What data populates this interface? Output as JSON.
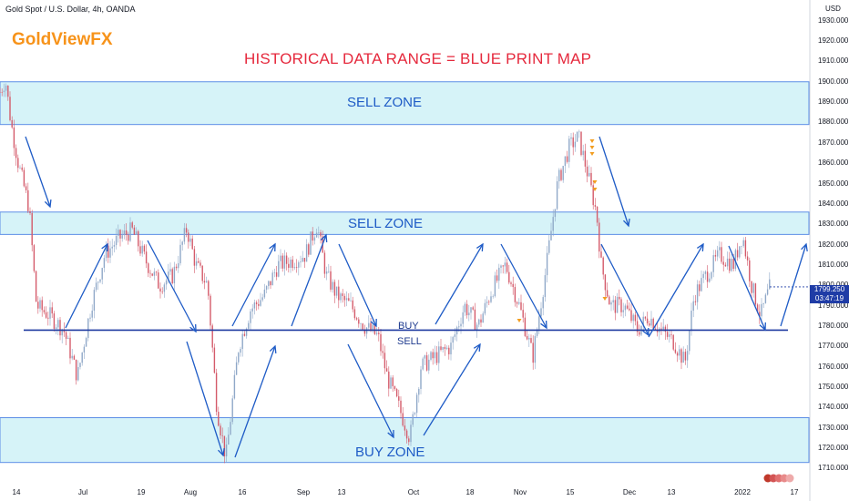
{
  "header": {
    "symbol": "Gold Spot / U.S. Dollar, 4h, OANDA",
    "brand": "GoldViewFX",
    "headline": "HISTORICAL DATA RANGE = BLUE PRINT MAP",
    "currency": "USD"
  },
  "price_tag": {
    "price": "1799.250",
    "countdown": "03:47:19",
    "color": "#1f3ca6"
  },
  "colors": {
    "zone_fill": "#d6f3f8",
    "zone_border": "#5c8ee6",
    "line": "#1e3aa0",
    "arrow": "#1e5bc6",
    "candle_up": "#8fa8c8",
    "candle_down": "#d45a6a",
    "headline": "#e5293d",
    "brand": "#f7931a"
  },
  "chart_data": {
    "type": "candlestick",
    "title": "HISTORICAL DATA RANGE = BLUE PRINT MAP",
    "yaxis": {
      "range": [
        1706,
        1935
      ],
      "unit": "USD",
      "ticks": [
        "1930.000",
        "1920.000",
        "1910.000",
        "1900.000",
        "1890.000",
        "1880.000",
        "1870.000",
        "1860.000",
        "1850.000",
        "1840.000",
        "1830.000",
        "1820.000",
        "1810.000",
        "1800.000",
        "1790.000",
        "1780.000",
        "1770.000",
        "1760.000",
        "1750.000",
        "1740.000",
        "1730.000",
        "1720.000",
        "1710.000"
      ]
    },
    "xaxis": {
      "ticks": [
        "14",
        "Jul",
        "19",
        "Aug",
        "16",
        "Sep",
        "13",
        "Oct",
        "18",
        "Nov",
        "15",
        "Dec",
        "13",
        "2022",
        "17"
      ]
    },
    "zones": [
      {
        "label": "SELL ZONE",
        "low": 1879,
        "high": 1900
      },
      {
        "label": "SELL ZONE",
        "low": 1825,
        "high": 1836
      },
      {
        "label": "BUY ZONE",
        "low": 1713,
        "high": 1735
      }
    ],
    "level": {
      "value": 1778,
      "above_label": "BUY",
      "below_label": "SELL"
    },
    "price_path": [
      [
        0,
        1895
      ],
      [
        6,
        1901
      ],
      [
        12,
        1880
      ],
      [
        20,
        1860
      ],
      [
        32,
        1838
      ],
      [
        40,
        1790
      ],
      [
        55,
        1785
      ],
      [
        70,
        1778
      ],
      [
        85,
        1755
      ],
      [
        100,
        1790
      ],
      [
        115,
        1815
      ],
      [
        130,
        1823
      ],
      [
        145,
        1827
      ],
      [
        160,
        1812
      ],
      [
        175,
        1800
      ],
      [
        190,
        1805
      ],
      [
        205,
        1828
      ],
      [
        215,
        1810
      ],
      [
        228,
        1800
      ],
      [
        238,
        1740
      ],
      [
        248,
        1715
      ],
      [
        262,
        1770
      ],
      [
        275,
        1788
      ],
      [
        290,
        1795
      ],
      [
        305,
        1810
      ],
      [
        320,
        1812
      ],
      [
        335,
        1815
      ],
      [
        348,
        1830
      ],
      [
        358,
        1805
      ],
      [
        370,
        1795
      ],
      [
        385,
        1790
      ],
      [
        400,
        1780
      ],
      [
        415,
        1775
      ],
      [
        425,
        1755
      ],
      [
        438,
        1740
      ],
      [
        450,
        1725
      ],
      [
        462,
        1760
      ],
      [
        478,
        1765
      ],
      [
        495,
        1770
      ],
      [
        510,
        1790
      ],
      [
        525,
        1780
      ],
      [
        540,
        1798
      ],
      [
        555,
        1810
      ],
      [
        570,
        1790
      ],
      [
        585,
        1765
      ],
      [
        600,
        1810
      ],
      [
        612,
        1850
      ],
      [
        625,
        1868
      ],
      [
        635,
        1873
      ],
      [
        645,
        1855
      ],
      [
        655,
        1835
      ],
      [
        660,
        1810
      ],
      [
        670,
        1790
      ],
      [
        685,
        1790
      ],
      [
        700,
        1778
      ],
      [
        712,
        1785
      ],
      [
        725,
        1778
      ],
      [
        740,
        1772
      ],
      [
        752,
        1762
      ],
      [
        762,
        1795
      ],
      [
        775,
        1805
      ],
      [
        790,
        1815
      ],
      [
        805,
        1810
      ],
      [
        815,
        1825
      ],
      [
        825,
        1800
      ],
      [
        835,
        1785
      ],
      [
        845,
        1799
      ]
    ]
  },
  "arrows": [
    [
      [
        28,
        150
      ],
      [
        55,
        227
      ]
    ],
    [
      [
        72,
        360
      ],
      [
        118,
        268
      ]
    ],
    [
      [
        162,
        264
      ],
      [
        215,
        364
      ]
    ],
    [
      [
        205,
        375
      ],
      [
        245,
        500
      ]
    ],
    [
      [
        258,
        502
      ],
      [
        302,
        380
      ]
    ],
    [
      [
        255,
        358
      ],
      [
        302,
        268
      ]
    ],
    [
      [
        320,
        358
      ],
      [
        358,
        258
      ]
    ],
    [
      [
        372,
        268
      ],
      [
        413,
        358
      ]
    ],
    [
      [
        382,
        378
      ],
      [
        432,
        480
      ]
    ],
    [
      [
        465,
        478
      ],
      [
        527,
        378
      ]
    ],
    [
      [
        478,
        356
      ],
      [
        530,
        268
      ]
    ],
    [
      [
        550,
        268
      ],
      [
        600,
        360
      ]
    ],
    [
      [
        658,
        150
      ],
      [
        690,
        248
      ]
    ],
    [
      [
        660,
        268
      ],
      [
        712,
        368
      ]
    ],
    [
      [
        712,
        370
      ],
      [
        772,
        268
      ]
    ],
    [
      [
        800,
        270
      ],
      [
        840,
        362
      ]
    ],
    [
      [
        857,
        358
      ],
      [
        885,
        268
      ]
    ]
  ],
  "markers": [
    [
      650,
      155
    ],
    [
      650,
      162
    ],
    [
      650,
      169
    ],
    [
      653,
      200
    ],
    [
      653,
      208
    ],
    [
      570,
      352
    ],
    [
      664,
      328
    ]
  ],
  "x_tick_positions": [
    18,
    91,
    155,
    209,
    266,
    333,
    375,
    454,
    516,
    571,
    626,
    691,
    737,
    815,
    872
  ]
}
